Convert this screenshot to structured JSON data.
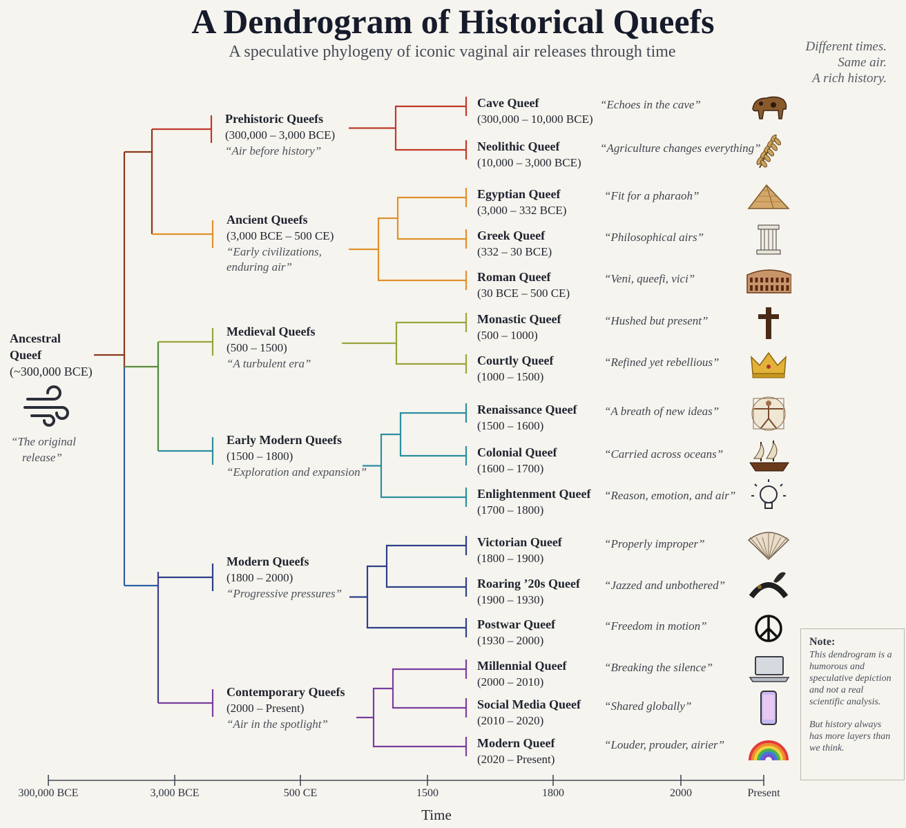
{
  "title": "A Dendrogram of Historical Queefs",
  "subtitle": "A speculative phylogeny of iconic vaginal air releases through time",
  "tagline": [
    "Different times.",
    "Same air.",
    "A rich history."
  ],
  "root": {
    "name_lines": [
      "Ancestral",
      "Queef"
    ],
    "date": "(~300,000 BCE)",
    "quote_lines": [
      "“The original",
      "release”"
    ],
    "icon": "wind-icon"
  },
  "colors": {
    "root": "#8a3a1c",
    "prehistoric": "#c0392b",
    "ancient": "#e0902a",
    "medieval": "#9aa33a",
    "early_modern": "#2a8fa0",
    "modern": "#2c3f8a",
    "contemporary": "#7a3d9e"
  },
  "groups": [
    {
      "key": "prehistoric",
      "name": "Prehistoric Queefs",
      "date": "(300,000 – 3,000 BCE)",
      "quote": "“Air before history”",
      "leaves": [
        {
          "name": "Cave Queef",
          "date": "(300,000 – 10,000 BCE)",
          "quote": "“Echoes in the cave”",
          "icon": "bison-icon"
        },
        {
          "name": "Neolithic Queef",
          "date": "(10,000 – 3,000 BCE)",
          "quote": "“Agriculture changes everything”",
          "icon": "wheat-icon"
        }
      ]
    },
    {
      "key": "ancient",
      "name": "Ancient Queefs",
      "date": "(3,000 BCE – 500 CE)",
      "quote": "“Early civilizations,\n enduring air”",
      "leaves": [
        {
          "name": "Egyptian Queef",
          "date": "(3,000 – 332 BCE)",
          "quote": "“Fit for a pharaoh”",
          "icon": "pyramid-icon"
        },
        {
          "name": "Greek Queef",
          "date": "(332 – 30 BCE)",
          "quote": "“Philosophical airs”",
          "icon": "column-icon"
        },
        {
          "name": "Roman Queef",
          "date": "(30 BCE – 500 CE)",
          "quote": "“Veni, queefi, vici”",
          "icon": "colosseum-icon"
        }
      ]
    },
    {
      "key": "medieval",
      "name": "Medieval Queefs",
      "date": "(500 – 1500)",
      "quote": "“A turbulent era”",
      "leaves": [
        {
          "name": "Monastic Queef",
          "date": "(500 – 1000)",
          "quote": "“Hushed but present”",
          "icon": "cross-icon"
        },
        {
          "name": "Courtly Queef",
          "date": "(1000 – 1500)",
          "quote": "“Refined yet rebellious”",
          "icon": "crown-icon"
        }
      ]
    },
    {
      "key": "early_modern",
      "name": "Early Modern Queefs",
      "date": "(1500 – 1800)",
      "quote": "“Exploration and expansion”",
      "leaves": [
        {
          "name": "Renaissance Queef",
          "date": "(1500 – 1600)",
          "quote": "“A breath of new ideas”",
          "icon": "vitruvian-man-icon"
        },
        {
          "name": "Colonial Queef",
          "date": "(1600 – 1700)",
          "quote": "“Carried across oceans”",
          "icon": "ship-icon"
        },
        {
          "name": "Enlightenment Queef",
          "date": "(1700 – 1800)",
          "quote": "“Reason, emotion, and air”",
          "icon": "lightbulb-icon"
        }
      ]
    },
    {
      "key": "modern",
      "name": "Modern Queefs",
      "date": "(1800 – 2000)",
      "quote": "“Progressive pressures”",
      "leaves": [
        {
          "name": "Victorian Queef",
          "date": "(1800 – 1900)",
          "quote": "“Properly improper”",
          "icon": "fan-icon"
        },
        {
          "name": "Roaring ’20s Queef",
          "date": "(1900 – 1930)",
          "quote": "“Jazzed and unbothered”",
          "icon": "headband-icon"
        },
        {
          "name": "Postwar Queef",
          "date": "(1930 – 2000)",
          "quote": "“Freedom in motion”",
          "icon": "peace-icon"
        }
      ]
    },
    {
      "key": "contemporary",
      "name": "Contemporary Queefs",
      "date": "(2000 – Present)",
      "quote": "“Air in the spotlight”",
      "leaves": [
        {
          "name": "Millennial Queef",
          "date": "(2000 – 2010)",
          "quote": "“Breaking the silence”",
          "icon": "laptop-icon"
        },
        {
          "name": "Social Media Queef",
          "date": "(2010 – 2020)",
          "quote": "“Shared globally”",
          "icon": "smartphone-icon"
        },
        {
          "name": "Modern Queef",
          "date": "(2020 – Present)",
          "quote": "“Louder, prouder, airier”",
          "icon": "rainbow-icon"
        }
      ]
    }
  ],
  "axis": {
    "title": "Time",
    "ticks": [
      "300,000 BCE",
      "3,000 BCE",
      "500 CE",
      "1500",
      "1800",
      "2000",
      "Present"
    ]
  },
  "note": {
    "heading": "Note:",
    "text1": "This dendrogram is a humorous and speculative depiction and not a real scientific analysis.",
    "text2": "But history always has more layers than we think."
  }
}
